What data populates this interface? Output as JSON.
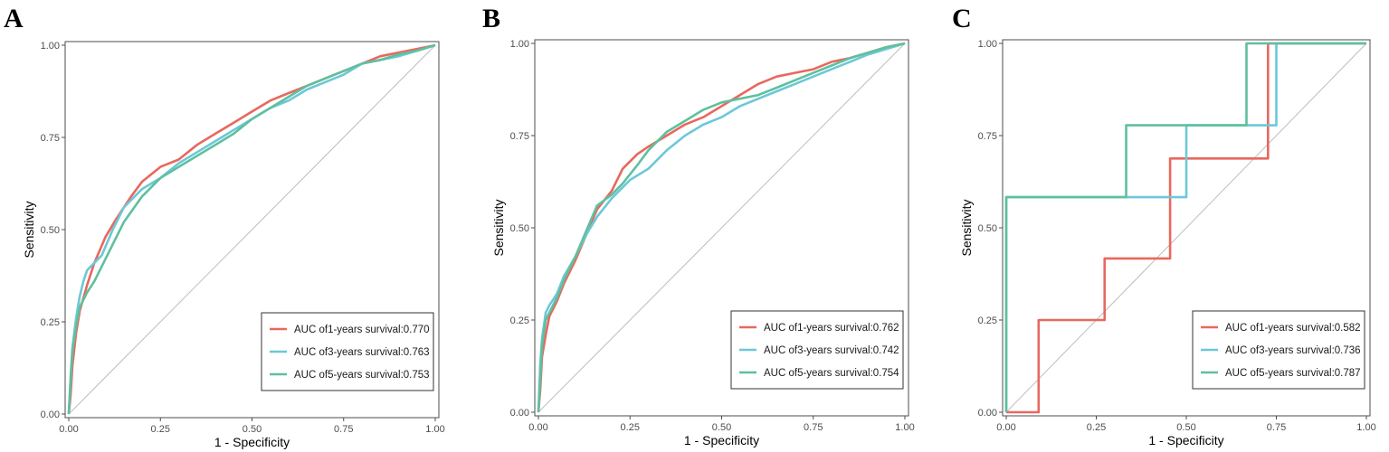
{
  "chart_data": [
    {
      "type": "line",
      "panel": "A",
      "xlabel": "1 - Specificity",
      "ylabel": "Sensitivity",
      "xlim": [
        0,
        1
      ],
      "ylim": [
        0,
        1
      ],
      "xticks": [
        "0.00",
        "0.25",
        "0.50",
        "0.75",
        "1.00"
      ],
      "yticks": [
        "0.00",
        "0.25",
        "0.50",
        "0.75",
        "1.00"
      ],
      "legend_position": "bottom-right",
      "reference_line": true,
      "series": [
        {
          "name": "AUC of1-years survival:0.770",
          "color": "#e8685e",
          "points": [
            [
              0,
              0
            ],
            [
              0.005,
              0.05
            ],
            [
              0.01,
              0.13
            ],
            [
              0.02,
              0.22
            ],
            [
              0.03,
              0.28
            ],
            [
              0.05,
              0.35
            ],
            [
              0.07,
              0.41
            ],
            [
              0.1,
              0.48
            ],
            [
              0.13,
              0.53
            ],
            [
              0.17,
              0.59
            ],
            [
              0.2,
              0.63
            ],
            [
              0.25,
              0.67
            ],
            [
              0.3,
              0.69
            ],
            [
              0.35,
              0.73
            ],
            [
              0.4,
              0.76
            ],
            [
              0.45,
              0.79
            ],
            [
              0.5,
              0.82
            ],
            [
              0.55,
              0.85
            ],
            [
              0.6,
              0.87
            ],
            [
              0.65,
              0.89
            ],
            [
              0.7,
              0.91
            ],
            [
              0.75,
              0.93
            ],
            [
              0.8,
              0.95
            ],
            [
              0.85,
              0.97
            ],
            [
              0.9,
              0.98
            ],
            [
              0.95,
              0.99
            ],
            [
              1,
              1
            ]
          ]
        },
        {
          "name": "AUC of3-years survival:0.763",
          "color": "#6cc8d8",
          "points": [
            [
              0,
              0
            ],
            [
              0.005,
              0.1
            ],
            [
              0.01,
              0.18
            ],
            [
              0.02,
              0.26
            ],
            [
              0.03,
              0.32
            ],
            [
              0.04,
              0.36
            ],
            [
              0.05,
              0.39
            ],
            [
              0.07,
              0.41
            ],
            [
              0.09,
              0.43
            ],
            [
              0.12,
              0.5
            ],
            [
              0.15,
              0.56
            ],
            [
              0.2,
              0.61
            ],
            [
              0.25,
              0.64
            ],
            [
              0.3,
              0.68
            ],
            [
              0.35,
              0.71
            ],
            [
              0.4,
              0.74
            ],
            [
              0.45,
              0.77
            ],
            [
              0.5,
              0.8
            ],
            [
              0.55,
              0.83
            ],
            [
              0.6,
              0.85
            ],
            [
              0.65,
              0.88
            ],
            [
              0.7,
              0.9
            ],
            [
              0.75,
              0.92
            ],
            [
              0.8,
              0.95
            ],
            [
              0.85,
              0.96
            ],
            [
              0.9,
              0.97
            ],
            [
              0.95,
              0.985
            ],
            [
              1,
              1
            ]
          ]
        },
        {
          "name": "AUC of5-years survival:0.753",
          "color": "#5fc09e",
          "points": [
            [
              0,
              0
            ],
            [
              0.005,
              0.09
            ],
            [
              0.01,
              0.17
            ],
            [
              0.02,
              0.24
            ],
            [
              0.03,
              0.29
            ],
            [
              0.05,
              0.33
            ],
            [
              0.07,
              0.36
            ],
            [
              0.09,
              0.4
            ],
            [
              0.12,
              0.46
            ],
            [
              0.15,
              0.52
            ],
            [
              0.2,
              0.59
            ],
            [
              0.25,
              0.64
            ],
            [
              0.3,
              0.67
            ],
            [
              0.35,
              0.7
            ],
            [
              0.4,
              0.73
            ],
            [
              0.45,
              0.76
            ],
            [
              0.5,
              0.8
            ],
            [
              0.55,
              0.83
            ],
            [
              0.6,
              0.86
            ],
            [
              0.65,
              0.89
            ],
            [
              0.7,
              0.91
            ],
            [
              0.75,
              0.93
            ],
            [
              0.8,
              0.95
            ],
            [
              0.85,
              0.96
            ],
            [
              0.9,
              0.975
            ],
            [
              0.95,
              0.985
            ],
            [
              1,
              1
            ]
          ]
        }
      ]
    },
    {
      "type": "line",
      "panel": "B",
      "xlabel": "1 - Specificity",
      "ylabel": "Sensitivity",
      "xlim": [
        0,
        1
      ],
      "ylim": [
        0,
        1
      ],
      "xticks": [
        "0.00",
        "0.25",
        "0.50",
        "0.75",
        "1.00"
      ],
      "yticks": [
        "0.00",
        "0.25",
        "0.50",
        "0.75",
        "1.00"
      ],
      "legend_position": "bottom-right",
      "reference_line": true,
      "series": [
        {
          "name": "AUC of1-years survival:0.762",
          "color": "#e8685e",
          "points": [
            [
              0,
              0
            ],
            [
              0.005,
              0.06
            ],
            [
              0.01,
              0.15
            ],
            [
              0.02,
              0.21
            ],
            [
              0.03,
              0.26
            ],
            [
              0.05,
              0.3
            ],
            [
              0.07,
              0.35
            ],
            [
              0.1,
              0.41
            ],
            [
              0.13,
              0.48
            ],
            [
              0.16,
              0.55
            ],
            [
              0.2,
              0.6
            ],
            [
              0.23,
              0.66
            ],
            [
              0.27,
              0.7
            ],
            [
              0.3,
              0.72
            ],
            [
              0.35,
              0.75
            ],
            [
              0.4,
              0.78
            ],
            [
              0.45,
              0.8
            ],
            [
              0.5,
              0.83
            ],
            [
              0.55,
              0.86
            ],
            [
              0.6,
              0.89
            ],
            [
              0.65,
              0.91
            ],
            [
              0.7,
              0.92
            ],
            [
              0.75,
              0.93
            ],
            [
              0.8,
              0.95
            ],
            [
              0.85,
              0.96
            ],
            [
              0.9,
              0.975
            ],
            [
              0.95,
              0.99
            ],
            [
              1,
              1
            ]
          ]
        },
        {
          "name": "AUC of3-years survival:0.742",
          "color": "#6cc8d8",
          "points": [
            [
              0,
              0
            ],
            [
              0.005,
              0.13
            ],
            [
              0.01,
              0.2
            ],
            [
              0.02,
              0.27
            ],
            [
              0.03,
              0.29
            ],
            [
              0.05,
              0.32
            ],
            [
              0.07,
              0.37
            ],
            [
              0.1,
              0.42
            ],
            [
              0.13,
              0.48
            ],
            [
              0.16,
              0.53
            ],
            [
              0.2,
              0.58
            ],
            [
              0.25,
              0.63
            ],
            [
              0.3,
              0.66
            ],
            [
              0.35,
              0.71
            ],
            [
              0.4,
              0.75
            ],
            [
              0.45,
              0.78
            ],
            [
              0.5,
              0.8
            ],
            [
              0.55,
              0.83
            ],
            [
              0.6,
              0.85
            ],
            [
              0.65,
              0.87
            ],
            [
              0.7,
              0.89
            ],
            [
              0.75,
              0.91
            ],
            [
              0.8,
              0.93
            ],
            [
              0.85,
              0.95
            ],
            [
              0.9,
              0.97
            ],
            [
              0.95,
              0.985
            ],
            [
              1,
              1
            ]
          ]
        },
        {
          "name": "AUC of5-years survival:0.754",
          "color": "#5fc09e",
          "points": [
            [
              0,
              0
            ],
            [
              0.005,
              0.09
            ],
            [
              0.01,
              0.18
            ],
            [
              0.02,
              0.25
            ],
            [
              0.03,
              0.27
            ],
            [
              0.05,
              0.31
            ],
            [
              0.07,
              0.36
            ],
            [
              0.1,
              0.42
            ],
            [
              0.13,
              0.49
            ],
            [
              0.16,
              0.56
            ],
            [
              0.2,
              0.59
            ],
            [
              0.23,
              0.62
            ],
            [
              0.27,
              0.67
            ],
            [
              0.3,
              0.71
            ],
            [
              0.35,
              0.76
            ],
            [
              0.4,
              0.79
            ],
            [
              0.45,
              0.82
            ],
            [
              0.5,
              0.84
            ],
            [
              0.55,
              0.85
            ],
            [
              0.6,
              0.86
            ],
            [
              0.65,
              0.88
            ],
            [
              0.7,
              0.9
            ],
            [
              0.75,
              0.92
            ],
            [
              0.8,
              0.94
            ],
            [
              0.85,
              0.96
            ],
            [
              0.9,
              0.975
            ],
            [
              0.95,
              0.99
            ],
            [
              1,
              1
            ]
          ]
        }
      ]
    },
    {
      "type": "line",
      "panel": "C",
      "xlabel": "1 - Specificity",
      "ylabel": "Sensitivity",
      "xlim": [
        0,
        1
      ],
      "ylim": [
        0,
        1
      ],
      "xticks": [
        "0.00",
        "0.25",
        "0.50",
        "0.75",
        "1.00"
      ],
      "yticks": [
        "0.00",
        "0.25",
        "0.50",
        "0.75",
        "1.00"
      ],
      "legend_position": "bottom-right",
      "reference_line": true,
      "series": [
        {
          "name": "AUC of1-years survival:0.582",
          "color": "#e8685e",
          "points": [
            [
              0,
              0
            ],
            [
              0.09,
              0
            ],
            [
              0.09,
              0.25
            ],
            [
              0.273,
              0.25
            ],
            [
              0.273,
              0.417
            ],
            [
              0.455,
              0.417
            ],
            [
              0.455,
              0.688
            ],
            [
              0.727,
              0.688
            ],
            [
              0.727,
              1
            ],
            [
              1,
              1
            ]
          ]
        },
        {
          "name": "AUC of3-years survival:0.736",
          "color": "#6cc8d8",
          "points": [
            [
              0,
              0
            ],
            [
              0,
              0.583
            ],
            [
              0.5,
              0.583
            ],
            [
              0.5,
              0.778
            ],
            [
              0.75,
              0.778
            ],
            [
              0.75,
              1
            ],
            [
              1,
              1
            ]
          ]
        },
        {
          "name": "AUC of5-years survival:0.787",
          "color": "#5fc09e",
          "points": [
            [
              0,
              0
            ],
            [
              0,
              0.583
            ],
            [
              0.333,
              0.583
            ],
            [
              0.333,
              0.778
            ],
            [
              0.667,
              0.778
            ],
            [
              0.667,
              1
            ],
            [
              1,
              1
            ]
          ]
        }
      ]
    }
  ]
}
